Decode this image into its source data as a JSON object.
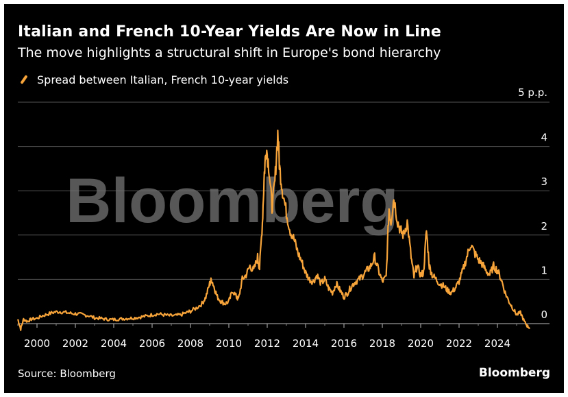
{
  "header": {
    "title": "Italian and French 10-Year Yields Are Now in Line",
    "subtitle": "The move highlights a structural shift in Europe's bond hierarchy"
  },
  "footer": {
    "source": "Source: Bloomberg",
    "brand": "Bloomberg"
  },
  "watermark": "Bloomberg",
  "colors": {
    "background": "#000000",
    "series": "#f7a43a",
    "grid": "#555555",
    "text": "#ffffff"
  },
  "chart_data": {
    "type": "line",
    "title": "Italian and French 10-Year Yields Are Now in Line",
    "subtitle": "The move highlights a structural shift in Europe's bond hierarchy",
    "xlabel": "",
    "ylabel": "",
    "y_unit_label": "5 p.p.",
    "ylim": [
      0,
      5
    ],
    "xlim": [
      1999.0,
      2026.0
    ],
    "y_ticks": [
      0,
      1,
      2,
      3,
      4
    ],
    "x_ticks": [
      "2000",
      "2002",
      "2004",
      "2006",
      "2008",
      "2010",
      "2012",
      "2014",
      "2016",
      "2018",
      "2020",
      "2022",
      "2024"
    ],
    "grid": true,
    "legend_position": "top-left",
    "series": [
      {
        "name": "Spread between Italian, French 10-year yields",
        "x": [
          1999.0,
          1999.15,
          1999.3,
          1999.5,
          1999.7,
          2000.0,
          2000.3,
          2000.6,
          2000.9,
          2001.2,
          2001.5,
          2001.8,
          2002.1,
          2002.4,
          2002.7,
          2003.0,
          2003.3,
          2003.6,
          2003.9,
          2004.2,
          2004.5,
          2004.8,
          2005.1,
          2005.4,
          2005.7,
          2006.0,
          2006.3,
          2006.6,
          2006.9,
          2007.2,
          2007.5,
          2007.8,
          2008.0,
          2008.3,
          2008.6,
          2008.8,
          2009.0,
          2009.1,
          2009.25,
          2009.4,
          2009.6,
          2009.8,
          2010.0,
          2010.2,
          2010.4,
          2010.5,
          2010.7,
          2010.9,
          2011.1,
          2011.3,
          2011.5,
          2011.6,
          2011.75,
          2011.85,
          2011.95,
          2012.1,
          2012.25,
          2012.4,
          2012.55,
          2012.65,
          2012.8,
          2013.0,
          2013.2,
          2013.4,
          2013.6,
          2013.8,
          2014.0,
          2014.2,
          2014.4,
          2014.6,
          2014.8,
          2015.0,
          2015.2,
          2015.4,
          2015.6,
          2015.8,
          2016.0,
          2016.2,
          2016.4,
          2016.6,
          2016.8,
          2017.0,
          2017.2,
          2017.4,
          2017.6,
          2017.8,
          2018.0,
          2018.2,
          2018.35,
          2018.45,
          2018.6,
          2018.8,
          2018.95,
          2019.1,
          2019.3,
          2019.5,
          2019.65,
          2019.8,
          2020.0,
          2020.15,
          2020.3,
          2020.45,
          2020.6,
          2020.8,
          2021.0,
          2021.2,
          2021.4,
          2021.6,
          2021.8,
          2022.0,
          2022.2,
          2022.4,
          2022.6,
          2022.8,
          2023.0,
          2023.2,
          2023.4,
          2023.6,
          2023.8,
          2024.0,
          2024.2,
          2024.4,
          2024.6,
          2024.8,
          2025.0,
          2025.2,
          2025.4,
          2025.55,
          2025.7
        ],
        "values": [
          0.1,
          -0.12,
          0.1,
          0.05,
          0.1,
          0.12,
          0.18,
          0.22,
          0.26,
          0.27,
          0.25,
          0.23,
          0.22,
          0.2,
          0.18,
          0.13,
          0.12,
          0.1,
          0.09,
          0.1,
          0.11,
          0.12,
          0.13,
          0.15,
          0.17,
          0.2,
          0.22,
          0.2,
          0.18,
          0.18,
          0.2,
          0.25,
          0.28,
          0.35,
          0.45,
          0.6,
          0.9,
          1.0,
          0.8,
          0.6,
          0.5,
          0.45,
          0.5,
          0.75,
          0.6,
          0.55,
          1.0,
          1.1,
          1.3,
          1.2,
          1.5,
          1.25,
          2.3,
          3.4,
          4.0,
          3.5,
          2.6,
          3.2,
          4.3,
          3.5,
          3.0,
          2.5,
          2.1,
          1.9,
          1.6,
          1.4,
          1.15,
          1.0,
          0.95,
          1.1,
          0.9,
          1.0,
          0.8,
          0.7,
          0.9,
          0.75,
          0.6,
          0.7,
          0.85,
          0.95,
          1.0,
          1.1,
          1.2,
          1.3,
          1.5,
          1.2,
          0.95,
          1.05,
          2.6,
          2.3,
          2.85,
          2.3,
          2.1,
          2.0,
          2.3,
          1.5,
          1.05,
          1.3,
          1.1,
          1.15,
          2.1,
          1.3,
          1.1,
          1.0,
          0.9,
          0.85,
          0.75,
          0.7,
          0.8,
          0.95,
          1.2,
          1.5,
          1.8,
          1.6,
          1.45,
          1.35,
          1.2,
          1.1,
          1.3,
          1.2,
          1.0,
          0.7,
          0.5,
          0.35,
          0.2,
          0.25,
          0.05,
          -0.05,
          -0.1
        ]
      }
    ]
  }
}
